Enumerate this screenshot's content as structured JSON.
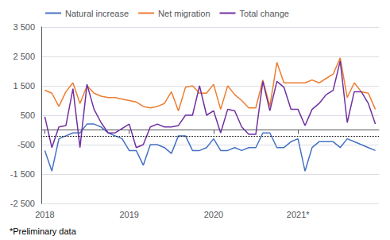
{
  "chart_data": {
    "type": "line",
    "categories": [
      "2018",
      null,
      null,
      null,
      null,
      null,
      null,
      null,
      null,
      null,
      null,
      null,
      "2019",
      null,
      null,
      null,
      null,
      null,
      null,
      null,
      null,
      null,
      null,
      null,
      "2020",
      null,
      null,
      null,
      null,
      null,
      null,
      null,
      null,
      null,
      null,
      null,
      "2021*",
      null,
      null,
      null,
      null,
      null,
      null,
      null,
      null,
      null,
      null,
      null
    ],
    "series": [
      {
        "name": "Natural increase",
        "color": "#4472C4",
        "values": [
          -700,
          -1400,
          -300,
          -200,
          -100,
          -100,
          200,
          200,
          100,
          -100,
          -200,
          -300,
          -700,
          -700,
          -1200,
          -500,
          -500,
          -600,
          -800,
          -200,
          -200,
          -700,
          -700,
          -600,
          -300,
          -700,
          -700,
          -600,
          -700,
          -600,
          -600,
          -100,
          -100,
          -600,
          -600,
          -400,
          -300,
          -1400,
          -600,
          -400,
          -400,
          -400,
          -600,
          -300,
          -400,
          -500,
          -600,
          -700
        ]
      },
      {
        "name": "Net migration",
        "color": "#ED7D31",
        "values": [
          1350,
          1250,
          800,
          1300,
          1600,
          900,
          1500,
          1250,
          1150,
          1100,
          1100,
          1050,
          1000,
          950,
          800,
          750,
          800,
          900,
          1300,
          650,
          1450,
          1500,
          1250,
          1250,
          1550,
          700,
          1500,
          1200,
          1000,
          750,
          750,
          1700,
          800,
          2300,
          1600,
          1600,
          1600,
          1600,
          1700,
          1600,
          1750,
          1900,
          2450,
          1100,
          1600,
          1300,
          1250,
          700
        ]
      },
      {
        "name": "Total change",
        "color": "#7030A0",
        "values": [
          450,
          -600,
          100,
          150,
          1400,
          -600,
          1550,
          700,
          250,
          -100,
          -100,
          50,
          200,
          -600,
          -500,
          100,
          200,
          100,
          100,
          150,
          500,
          500,
          1500,
          500,
          650,
          -100,
          700,
          650,
          100,
          -150,
          -150,
          1650,
          650,
          1650,
          1450,
          700,
          700,
          150,
          700,
          900,
          1200,
          1350,
          2350,
          250,
          1300,
          1300,
          900,
          200
        ]
      }
    ],
    "ylim": [
      -2500,
      3500
    ],
    "yticks": [
      {
        "value": -2500,
        "label": "-2 500"
      },
      {
        "value": -1500,
        "label": "-1 500"
      },
      -500,
      500,
      {
        "value": 1500,
        "label": "1 500"
      },
      {
        "value": 2500,
        "label": "2 500"
      },
      {
        "value": 3500,
        "label": "3 500"
      }
    ],
    "grid": true,
    "legend": "upper left",
    "reference_lines": [
      {
        "y": -200,
        "color": "#000000",
        "line_style": "dotted"
      }
    ],
    "footnote": "*Preliminary data"
  }
}
